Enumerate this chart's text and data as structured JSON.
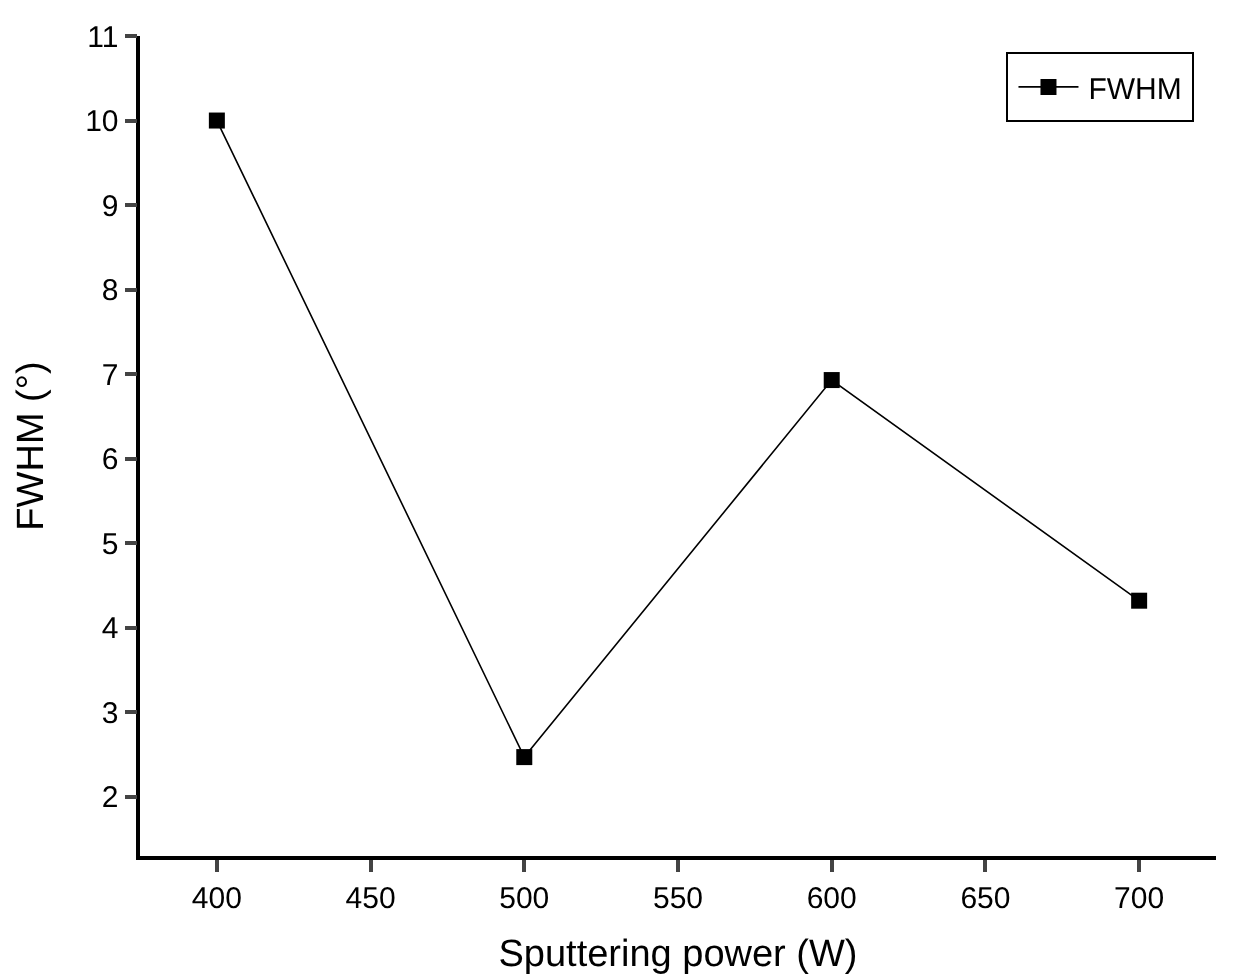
{
  "chart_data": {
    "type": "line",
    "xlabel": "Sputtering power (W)",
    "ylabel": "FWHM (°)",
    "x": [
      400,
      500,
      600,
      700
    ],
    "series": [
      {
        "name": "FWHM",
        "color": "#000000",
        "values": [
          10,
          2.47,
          6.93,
          4.32
        ]
      }
    ],
    "xlim": [
      375,
      725
    ],
    "xticks": [
      400,
      450,
      500,
      550,
      600,
      650,
      700
    ],
    "ylim": [
      1.3,
      11
    ],
    "yticks": [
      2,
      3,
      4,
      5,
      6,
      7,
      8,
      9,
      10,
      11
    ],
    "grid": false,
    "legend": "top right",
    "marker": "square",
    "line_style": "solid"
  }
}
